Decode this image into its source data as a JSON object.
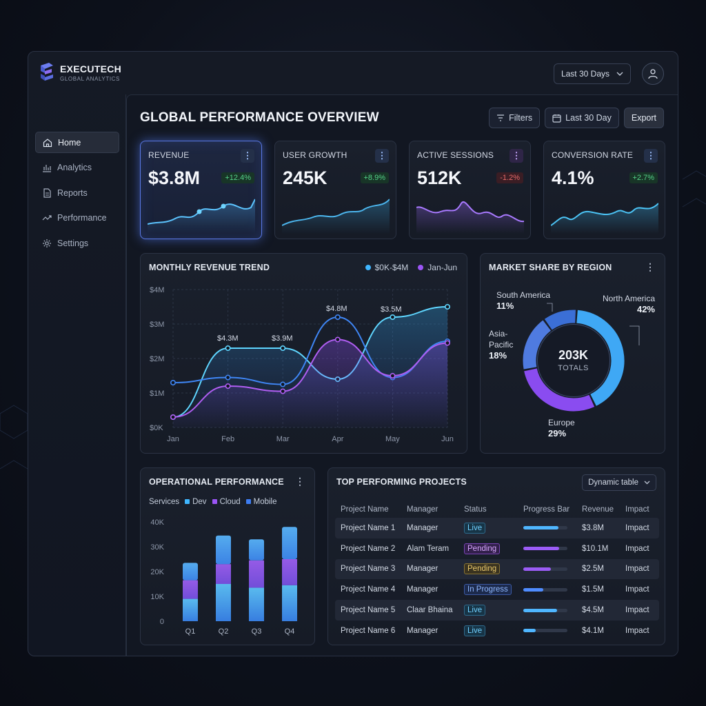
{
  "brand": {
    "name": "EXECUTECH",
    "subtitle": "GLOBAL ANALYTICS"
  },
  "header": {
    "range_select": "Last 30 Days"
  },
  "sidebar": {
    "items": [
      {
        "label": "Home",
        "icon": "home-icon",
        "active": true
      },
      {
        "label": "Analytics",
        "icon": "analytics-icon"
      },
      {
        "label": "Reports",
        "icon": "reports-icon"
      },
      {
        "label": "Performance",
        "icon": "performance-icon"
      },
      {
        "label": "Settings",
        "icon": "gear-icon"
      }
    ]
  },
  "main": {
    "title": "GLOBAL PERFORMANCE OVERVIEW",
    "toolbar": {
      "filters": "Filters",
      "date": "Last 30 Day",
      "export": "Export"
    }
  },
  "kpis": [
    {
      "label": "REVENUE",
      "value": "$3.8M",
      "delta": "+12.4%",
      "trend": "up",
      "color": "#4fb2ff"
    },
    {
      "label": "USER GROWTH",
      "value": "245K",
      "delta": "+8.9%",
      "trend": "up",
      "color": "#3aa7e0"
    },
    {
      "label": "ACTIVE SESSIONS",
      "value": "512K",
      "delta": "-1.2%",
      "trend": "down",
      "color": "#9d6bff"
    },
    {
      "label": "CONVERSION RATE",
      "value": "4.1%",
      "delta": "+2.7%",
      "trend": "up",
      "color": "#3fb8f0"
    }
  ],
  "revenue_trend": {
    "title": "MONTHLY REVENUE TREND",
    "legend": [
      "$0K-$4M",
      "Jan-Jun"
    ],
    "annotations": [
      "$4.3M",
      "$3.9M",
      "$4.8M",
      "$3.5M"
    ]
  },
  "market_share": {
    "title": "MARKET SHARE BY REGION",
    "total": "203K",
    "total_label": "TOTALS",
    "regions": [
      {
        "name": "North America",
        "pct": "42%",
        "value": 42,
        "color": "#3fa8f5"
      },
      {
        "name": "Europe",
        "pct": "29%",
        "value": 29,
        "color": "#8a4cf0"
      },
      {
        "name": "Asia-Pacific",
        "pct": "18%",
        "value": 18,
        "color": "#4f7be0"
      },
      {
        "name": "South America",
        "pct": "11%",
        "value": 11,
        "color": "#3b6fd6"
      }
    ]
  },
  "operational": {
    "title": "OPERATIONAL PERFORMANCE",
    "legend_prefix": "Services",
    "legend": [
      {
        "name": "Dev",
        "color": "#3fb6ff"
      },
      {
        "name": "Cloud",
        "color": "#9b55f5"
      },
      {
        "name": "Mobile",
        "color": "#3d7df2"
      }
    ]
  },
  "projects": {
    "title": "TOP PERFORMING PROJECTS",
    "select": "Dynamic table",
    "columns": [
      "Project Name",
      "Manager",
      "Status",
      "Progress Bar",
      "Revenue",
      "Impact"
    ],
    "rows": [
      {
        "name": "Project Name 1",
        "manager": "Manager",
        "status": "Live",
        "status_type": "live",
        "progress": 0.8,
        "bar_color": "#4fb6ff",
        "revenue": "$3.8M",
        "impact": "Impact"
      },
      {
        "name": "Project Name 2",
        "manager": "Alam Teram",
        "status": "Pending",
        "status_type": "pending-p",
        "progress": 0.82,
        "bar_color": "#9b5cf6",
        "revenue": "$10.1M",
        "impact": "Impact"
      },
      {
        "name": "Project Name 3",
        "manager": "Manager",
        "status": "Pending",
        "status_type": "pending-y",
        "progress": 0.62,
        "bar_color": "#9b5cf6",
        "revenue": "$2.5M",
        "impact": "Impact"
      },
      {
        "name": "Project Name 4",
        "manager": "Manager",
        "status": "In Progress",
        "status_type": "inprog",
        "progress": 0.45,
        "bar_color": "#4f8cff",
        "revenue": "$1.5M",
        "impact": "Impact"
      },
      {
        "name": "Project Name 5",
        "manager": "Claar Bhaina",
        "status": "Live",
        "status_type": "live",
        "progress": 0.76,
        "bar_color": "#4fb6ff",
        "revenue": "$4.5M",
        "impact": "Impact"
      },
      {
        "name": "Project Name 6",
        "manager": "Manager",
        "status": "Live",
        "status_type": "live",
        "progress": 0.28,
        "bar_color": "#4fb6ff",
        "revenue": "$4.1M",
        "impact": "Impact"
      }
    ]
  },
  "chart_data": [
    {
      "type": "line",
      "title": "MONTHLY REVENUE TREND",
      "categories": [
        "Jan",
        "Feb",
        "Mar",
        "Apr",
        "May",
        "Jun"
      ],
      "y_ticks": [
        "$0K",
        "$1M",
        "$2M",
        "$3M",
        "$4M"
      ],
      "ylim": [
        0,
        4
      ],
      "grid": true,
      "series": [
        {
          "color": "#5fd6ff",
          "values": [
            0.3,
            2.3,
            2.3,
            1.4,
            3.2,
            3.5
          ]
        },
        {
          "color": "#3f86f5",
          "values": [
            1.3,
            1.45,
            1.25,
            3.2,
            1.45,
            2.5
          ]
        },
        {
          "color": "#b05ef2",
          "values": [
            0.3,
            1.2,
            1.05,
            2.55,
            1.5,
            2.45
          ]
        }
      ]
    },
    {
      "type": "pie",
      "title": "MARKET SHARE BY REGION",
      "categories": [
        "North America",
        "Europe",
        "Asia-Pacific",
        "South America"
      ],
      "values": [
        42,
        29,
        18,
        11
      ]
    },
    {
      "type": "bar",
      "title": "OPERATIONAL PERFORMANCE",
      "categories": [
        "Q1",
        "Q2",
        "Q3",
        "Q4"
      ],
      "y_ticks": [
        "0",
        "10K",
        "20K",
        "30K",
        "40K"
      ],
      "ylim": [
        0,
        40000
      ],
      "stacked": true,
      "series": [
        {
          "name": "Dev",
          "values": [
            9000,
            15000,
            13500,
            14500
          ]
        },
        {
          "name": "Cloud",
          "values": [
            7500,
            8000,
            11000,
            10500
          ]
        },
        {
          "name": "Mobile",
          "values": [
            7000,
            11500,
            8500,
            13000
          ]
        }
      ]
    }
  ]
}
